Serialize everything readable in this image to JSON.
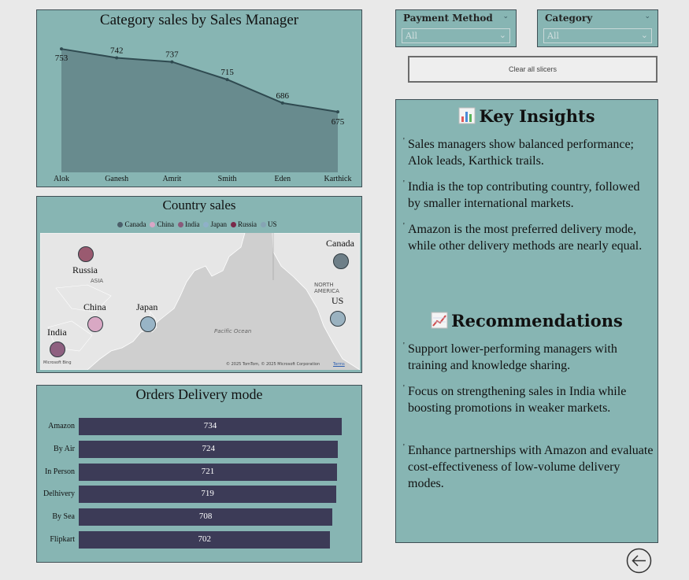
{
  "area_chart": {
    "title": "Category sales by Sales Manager",
    "chart_data": {
      "type": "area",
      "categories": [
        "Alok",
        "Ganesh",
        "Amrit",
        "Smith",
        "Eden",
        "Karthick"
      ],
      "values": [
        753,
        742,
        737,
        715,
        686,
        675
      ],
      "title": "Category sales by Sales Manager",
      "xlabel": "",
      "ylabel": "",
      "fill": "#688b8e",
      "line": "#2f4a50"
    }
  },
  "map": {
    "title": "Country sales",
    "legend": [
      {
        "name": "Canada",
        "color": "#4b5f6a"
      },
      {
        "name": "China",
        "color": "#d8a6c6"
      },
      {
        "name": "India",
        "color": "#8a5a7a"
      },
      {
        "name": "Japan",
        "color": "#8fb0c8"
      },
      {
        "name": "Russia",
        "color": "#7a2a4a"
      },
      {
        "name": "US",
        "color": "#86a4b4"
      }
    ],
    "countries": [
      {
        "name": "Russia",
        "color": "#9a5a70"
      },
      {
        "name": "China",
        "color": "#d9a8c4"
      },
      {
        "name": "Japan",
        "color": "#98b4c6"
      },
      {
        "name": "India",
        "color": "#8e6080"
      },
      {
        "name": "Canada",
        "color": "#6e7f88"
      },
      {
        "name": "US",
        "color": "#9ab2c0"
      }
    ],
    "region_asia": "ASIA",
    "region_na": "NORTH AMERICA",
    "ocean": "Pacific Ocean",
    "bing": "Microsoft Bing",
    "copyright": "© 2025 TomTom, © 2025 Microsoft Corporation",
    "terms": "Terms"
  },
  "bar_chart": {
    "title": "Orders Delivery mode",
    "chart_data": {
      "type": "bar",
      "orientation": "horizontal",
      "categories": [
        "Amazon",
        "By Air",
        "In Person",
        "Delhivery",
        "By Sea",
        "Flipkart"
      ],
      "values": [
        734,
        724,
        721,
        719,
        708,
        702
      ],
      "title": "Orders Delivery mode",
      "bar_color": "#3c3b57"
    }
  },
  "slicers": {
    "payment": {
      "title": "Payment Method",
      "value": "All"
    },
    "category": {
      "title": "Category",
      "value": "All"
    },
    "clear_label": "Clear all slicers"
  },
  "insights": {
    "title": "Key Insights",
    "items": [
      "Sales managers show balanced performance; Alok leads, Karthick trails.",
      "India is the top contributing country, followed by smaller international markets.",
      "Amazon is the most preferred delivery mode, while other delivery methods are nearly equal."
    ]
  },
  "recommendations": {
    "title": "Recommendations",
    "items": [
      "Support lower-performing managers with training and knowledge sharing.",
      "Focus on strengthening sales in India while boosting promotions in weaker markets.",
      "Enhance partnerships with Amazon and evaluate cost-effectiveness of low-volume delivery modes."
    ]
  }
}
